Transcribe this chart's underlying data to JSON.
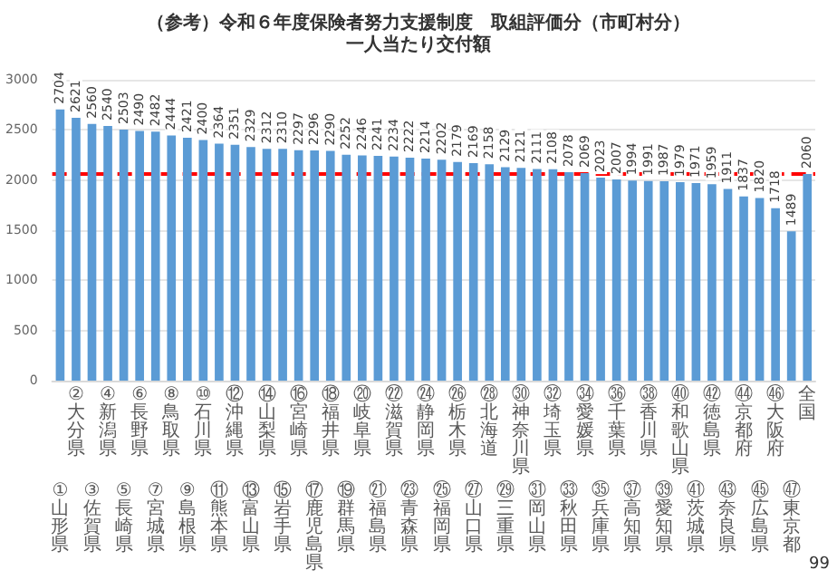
{
  "chart_data": {
    "type": "bar",
    "title": "（参考）令和６年度保険者努力支援制度　取組評価分（市町村分）",
    "subtitle": "一人当たり交付額",
    "categories": [
      "①山形県",
      "②大分県",
      "③佐賀県",
      "④新潟県",
      "⑤長崎県",
      "⑥長野県",
      "⑦宮城県",
      "⑧鳥取県",
      "⑨島根県",
      "⑩石川県",
      "⑪熊本県",
      "⑫沖縄県",
      "⑬富山県",
      "⑭山梨県",
      "⑮岩手県",
      "⑯宮崎県",
      "⑰鹿児島県",
      "⑱福井県",
      "⑲群馬県",
      "⑳岐阜県",
      "㉑福島県",
      "㉒滋賀県",
      "㉓青森県",
      "㉔静岡県",
      "㉕福岡県",
      "㉖栃木県",
      "㉗山口県",
      "㉘北海道",
      "㉙三重県",
      "㉚神奈川県",
      "㉛岡山県",
      "㉜埼玉県",
      "㉝秋田県",
      "㉞愛媛県",
      "㉟兵庫県",
      "㊱千葉県",
      "㊲高知県",
      "㊳香川県",
      "㊴愛知県",
      "㊵和歌山県",
      "㊶茨城県",
      "㊷徳島県",
      "㊸奈良県",
      "㊹京都府",
      "㊺広島県",
      "㊻大阪府",
      "㊼東京都",
      "全国"
    ],
    "values": [
      2704,
      2621,
      2560,
      2540,
      2503,
      2490,
      2482,
      2444,
      2421,
      2400,
      2364,
      2351,
      2329,
      2312,
      2310,
      2297,
      2296,
      2290,
      2252,
      2246,
      2241,
      2234,
      2222,
      2214,
      2202,
      2179,
      2169,
      2158,
      2129,
      2121,
      2111,
      2108,
      2078,
      2069,
      2023,
      2007,
      1994,
      1991,
      1987,
      1979,
      1971,
      1959,
      1911,
      1837,
      1820,
      1718,
      1489,
      2060
    ],
    "color": "#5b9bd5",
    "data_labels": true,
    "ylim": [
      0,
      3000
    ],
    "yticks": [
      0,
      500,
      1000,
      1500,
      2000,
      2500,
      3000
    ],
    "grid": "y",
    "ref_lines": [
      {
        "axis": "y",
        "value": 2060,
        "color": "#ff0000",
        "line_style": "dashed"
      }
    ],
    "annotations": [
      "99"
    ]
  }
}
